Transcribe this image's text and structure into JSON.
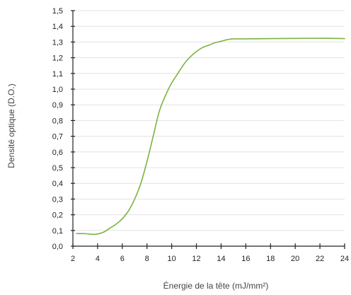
{
  "chart_data": {
    "type": "line",
    "xlabel": "Énergie de la tête (mJ/mm²)",
    "ylabel": "Densité optique (D.O.)",
    "xlim": [
      2,
      24
    ],
    "ylim": [
      0.0,
      1.5
    ],
    "x_ticks": [
      2,
      4,
      6,
      8,
      10,
      12,
      14,
      16,
      18,
      20,
      22,
      24
    ],
    "y_ticks": [
      0.0,
      0.1,
      0.2,
      0.3,
      0.4,
      0.5,
      0.6,
      0.7,
      0.8,
      0.9,
      1.0,
      1.1,
      1.2,
      1.3,
      1.4,
      1.5
    ],
    "y_tick_labels": [
      "0,0",
      "0,1",
      "0,2",
      "0,3",
      "0,4",
      "0,5",
      "0,6",
      "0,7",
      "0,8",
      "0,9",
      "1,0",
      "1,1",
      "1,2",
      "1,3",
      "1,4",
      "1,5"
    ],
    "grid": "horizontal",
    "series": [
      {
        "color": "#7cb342",
        "x": [
          2.3,
          3.0,
          3.6,
          4.0,
          4.5,
          5.0,
          5.5,
          6.0,
          6.5,
          7.0,
          7.5,
          8.0,
          8.5,
          9.0,
          9.5,
          10.0,
          10.5,
          11.0,
          11.5,
          12.0,
          12.5,
          13.0,
          13.5,
          14.0,
          14.5,
          15.0,
          16.0,
          18.0,
          20.0,
          22.0,
          24.0
        ],
        "y": [
          0.08,
          0.08,
          0.075,
          0.078,
          0.09,
          0.115,
          0.14,
          0.175,
          0.225,
          0.3,
          0.4,
          0.54,
          0.7,
          0.86,
          0.96,
          1.04,
          1.1,
          1.16,
          1.205,
          1.24,
          1.265,
          1.28,
          1.295,
          1.305,
          1.315,
          1.32,
          1.32,
          1.322,
          1.323,
          1.324,
          1.322
        ]
      }
    ]
  }
}
